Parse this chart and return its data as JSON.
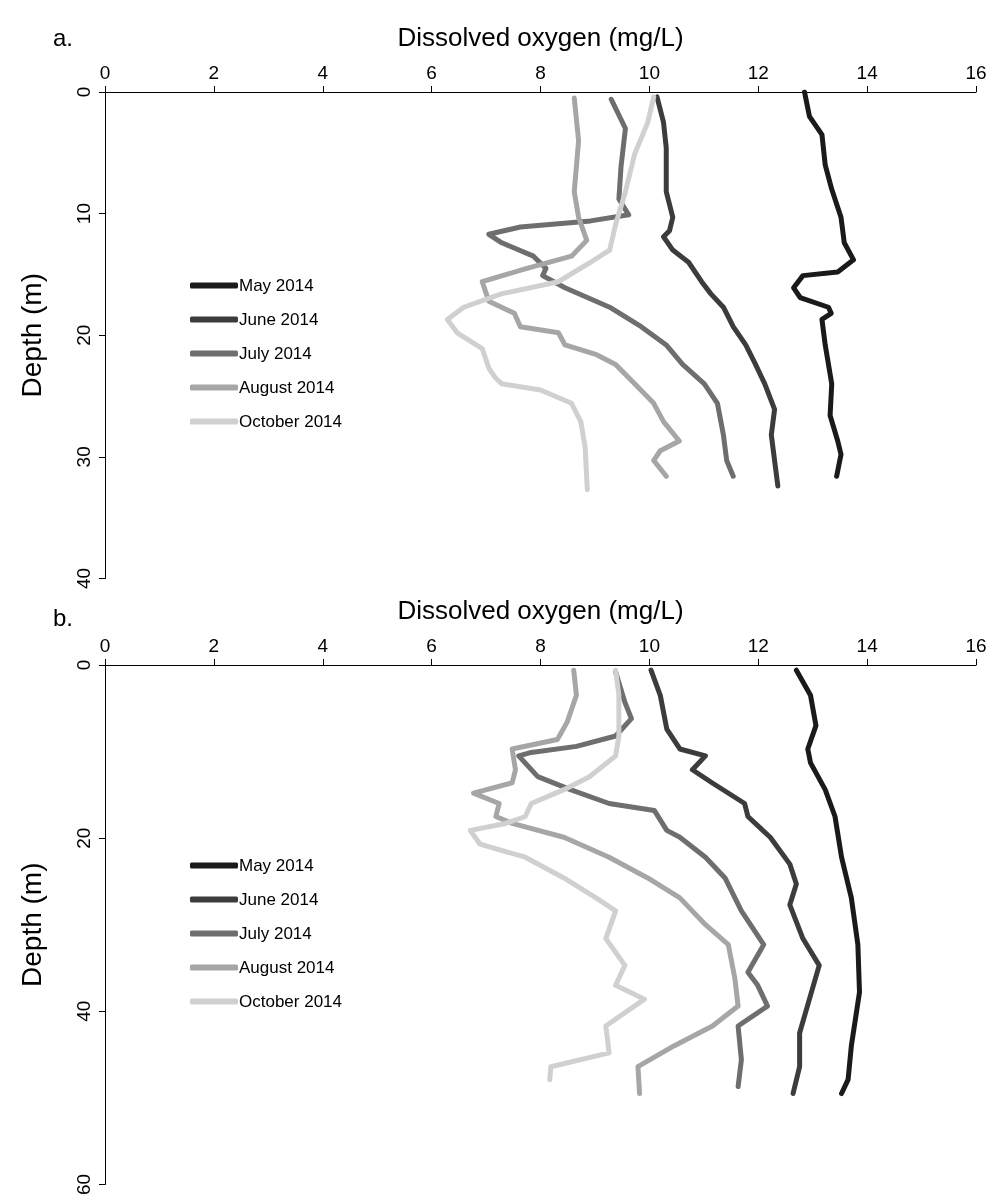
{
  "chart_data": [
    {
      "type": "line",
      "title": "a.",
      "xlabel": "Dissolved oxygen (mg/L)",
      "ylabel": "Depth (m)",
      "xlim": [
        0,
        16
      ],
      "xticks": [
        0,
        2,
        4,
        6,
        8,
        10,
        12,
        14,
        16
      ],
      "ylim": [
        40,
        0
      ],
      "yticks": [
        0,
        10,
        20,
        30,
        40
      ],
      "grid": false,
      "legend": "left",
      "marker": "none",
      "line_style": "solid",
      "series": [
        {
          "name": "May 2014",
          "color": "#1a1a1a",
          "x": [
            12.85,
            12.94,
            13.17,
            13.23,
            13.35,
            13.52,
            13.58,
            13.75,
            13.46,
            12.82,
            12.65,
            12.77,
            13.29,
            13.34,
            13.17,
            13.23,
            13.35,
            13.32,
            13.46,
            13.52,
            13.44
          ],
          "values": [
            0,
            2,
            3.5,
            6,
            8,
            10.3,
            12.4,
            13.8,
            14.8,
            15.1,
            16.1,
            16.9,
            17.7,
            18.2,
            18.7,
            20.8,
            24,
            26.6,
            28.7,
            29.8,
            31.6
          ]
        },
        {
          "name": "June 2014",
          "color": "#3c3c3c",
          "x": [
            10.14,
            10.26,
            10.31,
            10.31,
            10.43,
            10.37,
            10.26,
            10.43,
            10.72,
            10.96,
            11.13,
            11.36,
            11.54,
            11.77,
            11.95,
            12.12,
            12.3,
            12.24,
            12.3,
            12.36
          ],
          "values": [
            0.4,
            2.5,
            4.6,
            8.2,
            10.3,
            11.4,
            11.9,
            13,
            14,
            15.6,
            16.6,
            17.7,
            19.3,
            20.8,
            22.4,
            24,
            26.1,
            28.2,
            30.3,
            32.4
          ]
        },
        {
          "name": "July 2014",
          "color": "#6e6e6e",
          "x": [
            9.3,
            9.56,
            9.48,
            9.44,
            9.62,
            8.92,
            7.63,
            7.05,
            7.29,
            7.87,
            8.1,
            8.04,
            8.45,
            9.27,
            9.85,
            10.31,
            10.61,
            11.01,
            11.25,
            11.36,
            11.42,
            11.54
          ],
          "values": [
            0.6,
            3,
            6.1,
            8.8,
            10.1,
            10.6,
            11.1,
            11.7,
            12.4,
            13.5,
            14.5,
            15.1,
            16.1,
            17.7,
            19.3,
            20.8,
            22.4,
            24,
            25.6,
            28.2,
            30.3,
            31.6
          ]
        },
        {
          "name": "August 2014",
          "color": "#a6a6a6",
          "x": [
            8.62,
            8.7,
            8.62,
            8.7,
            8.85,
            8.57,
            7.75,
            6.93,
            7.05,
            7.52,
            7.63,
            8.33,
            8.45,
            9.03,
            9.38,
            9.73,
            10.08,
            10.26,
            10.55,
            10.2,
            10.08,
            10.31
          ],
          "values": [
            0.5,
            4,
            8.2,
            10.3,
            12.2,
            13.5,
            14.5,
            15.6,
            17.2,
            18.2,
            19.3,
            19.8,
            20.8,
            21.6,
            22.4,
            24,
            25.6,
            27.1,
            28.7,
            29.5,
            30.3,
            31.6
          ]
        },
        {
          "name": "October 2014",
          "color": "#d0d0d0",
          "x": [
            10.08,
            9.97,
            9.73,
            9.56,
            9.38,
            9.27,
            8.92,
            8.33,
            7.28,
            6.59,
            6.29,
            6.47,
            6.93,
            7.05,
            7.17,
            7.29,
            8.0,
            8.57,
            8.74,
            8.82,
            8.86
          ],
          "values": [
            0.4,
            2.5,
            5.1,
            8.2,
            10.9,
            13,
            14,
            15.6,
            16.6,
            17.7,
            18.7,
            19.8,
            21.1,
            22.7,
            23.5,
            24,
            24.5,
            25.6,
            27.1,
            29.2,
            32.7
          ]
        }
      ]
    },
    {
      "type": "line",
      "title": "b.",
      "xlabel": "Dissolved oxygen (mg/L)",
      "ylabel": "Depth (m)",
      "xlim": [
        0,
        16
      ],
      "xticks": [
        0,
        2,
        4,
        6,
        8,
        10,
        12,
        14,
        16
      ],
      "ylim": [
        60,
        0
      ],
      "yticks": [
        0,
        20,
        40,
        60
      ],
      "grid": false,
      "legend": "left",
      "marker": "none",
      "line_style": "solid",
      "series": [
        {
          "name": "May 2014",
          "color": "#1a1a1a",
          "x": [
            12.7,
            12.96,
            13.06,
            12.91,
            12.96,
            13.23,
            13.41,
            13.53,
            13.71,
            13.83,
            13.86,
            13.71,
            13.65,
            13.53
          ],
          "values": [
            0.6,
            3.5,
            7,
            9.7,
            11.3,
            14.4,
            17.5,
            22.2,
            26.9,
            32.3,
            37.8,
            44,
            47.9,
            49.5
          ]
        },
        {
          "name": "June 2014",
          "color": "#3c3c3c",
          "x": [
            10.03,
            10.2,
            10.32,
            10.56,
            11.03,
            10.79,
            11.15,
            11.75,
            11.81,
            12.22,
            12.58,
            12.7,
            12.58,
            12.82,
            13.12,
            12.94,
            12.76,
            12.76,
            12.64
          ],
          "values": [
            0.6,
            3.5,
            7.4,
            9.7,
            10.5,
            12.1,
            13.6,
            16,
            17.5,
            19.9,
            23,
            25.3,
            27.7,
            31.6,
            34.7,
            38.6,
            42.5,
            46.4,
            49.5
          ]
        },
        {
          "name": "July 2014",
          "color": "#6e6e6e",
          "x": [
            9.38,
            9.55,
            9.67,
            9.38,
            8.66,
            7.83,
            7.6,
            7.95,
            8.55,
            9.26,
            10.09,
            10.32,
            10.56,
            11.03,
            11.39,
            11.69,
            12.1,
            11.81,
            11.99,
            12.17,
            11.63,
            11.69,
            11.63
          ],
          "values": [
            0.8,
            4.3,
            6.2,
            8.2,
            9.4,
            10.1,
            10.5,
            12.9,
            14.4,
            16,
            16.8,
            19.1,
            19.9,
            22.2,
            24.6,
            28.4,
            32.3,
            35.5,
            37,
            39.4,
            41.7,
            45.6,
            48.7
          ]
        },
        {
          "name": "August 2014",
          "color": "#a6a6a6",
          "x": [
            8.61,
            8.66,
            8.49,
            8.31,
            7.48,
            7.54,
            7.48,
            6.77,
            7.24,
            7.18,
            7.48,
            8.43,
            9.26,
            9.97,
            10.56,
            11.03,
            11.45,
            11.57,
            11.63,
            11.16,
            10.45,
            9.79,
            9.82
          ],
          "values": [
            0.6,
            3.5,
            6.6,
            8.6,
            9.7,
            12.1,
            13.6,
            14.8,
            16,
            17.5,
            18.3,
            19.9,
            22.2,
            24.6,
            26.9,
            30,
            32.3,
            36.2,
            39.4,
            41.7,
            44,
            46.4,
            49.5
          ]
        },
        {
          "name": "October 2014",
          "color": "#d0d0d0",
          "x": [
            9.38,
            9.44,
            9.44,
            9.38,
            8.9,
            8.43,
            7.83,
            7.72,
            7.36,
            6.71,
            6.89,
            7.72,
            8.43,
            9.02,
            9.38,
            9.2,
            9.55,
            9.38,
            9.91,
            9.2,
            9.26,
            8.19,
            8.17
          ],
          "values": [
            0.6,
            3.5,
            8.2,
            10.5,
            12.9,
            14.4,
            16,
            17.5,
            18.3,
            19.1,
            20.7,
            22.2,
            24.6,
            26.9,
            28.4,
            31.6,
            34.7,
            37,
            38.6,
            41.7,
            44.8,
            46.4,
            47.9
          ]
        }
      ]
    }
  ]
}
